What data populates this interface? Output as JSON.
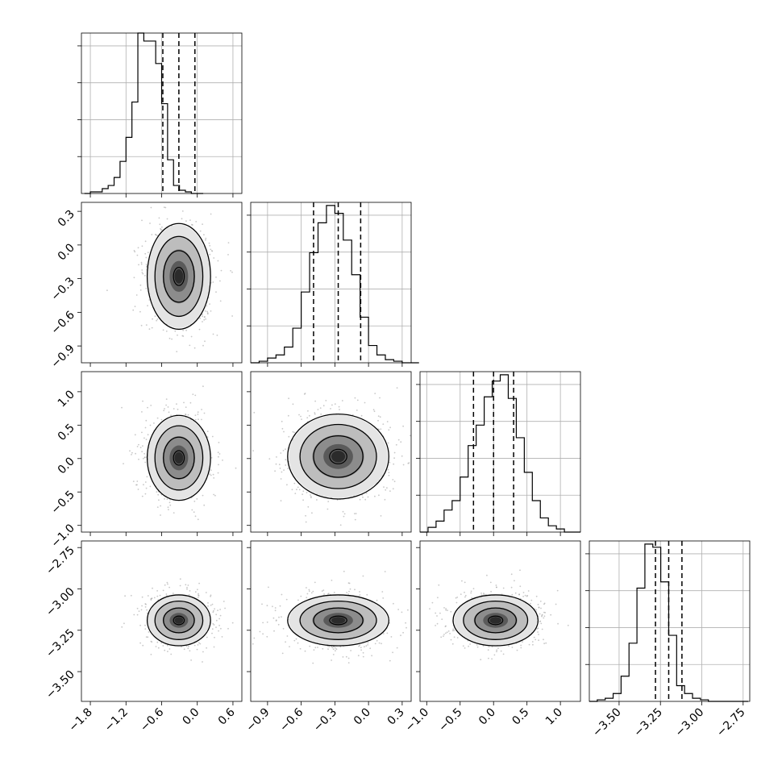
{
  "chart_data": {
    "type": "corner",
    "grid": true,
    "marginal_histograms": [
      {
        "parameter_index": 0,
        "bin_start": -1.9,
        "bin_width": 0.1,
        "counts": [
          0,
          1,
          1,
          3,
          5,
          10,
          20,
          35,
          57,
          100,
          95,
          95,
          81,
          56,
          21,
          5,
          2,
          1,
          0,
          0
        ],
        "ylim": [
          0,
          100
        ],
        "quantiles": [
          -0.58,
          -0.31,
          -0.04
        ]
      },
      {
        "parameter_index": 1,
        "bin_start": -1.05,
        "bin_width": 0.075,
        "counts": [
          0,
          1,
          3,
          5,
          10,
          22,
          45,
          70,
          89,
          100,
          95,
          78,
          56,
          29,
          11,
          5,
          2,
          1,
          0,
          0
        ],
        "ylim": [
          0,
          102
        ],
        "quantiles": [
          -0.49,
          -0.27,
          -0.07
        ]
      },
      {
        "parameter_index": 2,
        "bin_start": -1.1,
        "bin_width": 0.12,
        "counts": [
          0,
          3,
          7,
          14,
          20,
          35,
          55,
          68,
          86,
          96,
          100,
          85,
          60,
          38,
          20,
          9,
          4,
          2,
          0,
          0
        ],
        "ylim": [
          0,
          102
        ],
        "quantiles": [
          -0.3,
          0.0,
          0.3
        ]
      },
      {
        "parameter_index": 3,
        "bin_start": -3.68,
        "bin_width": 0.048,
        "counts": [
          0,
          1,
          2,
          5,
          16,
          37,
          72,
          100,
          98,
          76,
          42,
          10,
          5,
          2,
          1,
          0,
          0,
          0,
          0,
          0
        ],
        "ylim": [
          0,
          102
        ],
        "quantiles": [
          -3.28,
          -3.2,
          -3.12
        ]
      }
    ],
    "joint_2d": [
      {
        "x_param": 0,
        "y_param": 1,
        "center": [
          -0.31,
          -0.28
        ],
        "sigma": [
          0.26,
          0.23
        ]
      },
      {
        "x_param": 0,
        "y_param": 2,
        "center": [
          -0.31,
          0.01
        ],
        "sigma": [
          0.26,
          0.31
        ]
      },
      {
        "x_param": 1,
        "y_param": 2,
        "center": [
          -0.27,
          0.03
        ],
        "sigma": [
          0.22,
          0.31
        ]
      },
      {
        "x_param": 0,
        "y_param": 3,
        "center": [
          -0.31,
          -3.19
        ],
        "sigma": [
          0.26,
          0.075
        ]
      },
      {
        "x_param": 1,
        "y_param": 3,
        "center": [
          -0.27,
          -3.19
        ],
        "sigma": [
          0.22,
          0.075
        ]
      },
      {
        "x_param": 2,
        "y_param": 3,
        "center": [
          0.03,
          -3.19
        ],
        "sigma": [
          0.31,
          0.075
        ]
      }
    ],
    "axes": [
      {
        "param": 0,
        "range": [
          -1.95,
          0.75
        ],
        "ticks": [
          -1.8,
          -1.2,
          -0.6,
          0.0,
          0.6
        ],
        "tick_labels": [
          "−1.8",
          "−1.2",
          "−0.6",
          "0.0",
          "0.6"
        ]
      },
      {
        "param": 1,
        "range": [
          -1.05,
          0.38
        ],
        "ticks": [
          -0.9,
          -0.6,
          -0.3,
          0.0,
          0.3
        ],
        "tick_labels": [
          "−0.9",
          "−0.6",
          "−0.3",
          "0.0",
          "0.3"
        ]
      },
      {
        "param": 2,
        "range": [
          -1.1,
          1.3
        ],
        "ticks": [
          -1.0,
          -0.5,
          0.0,
          0.5,
          1.0
        ],
        "tick_labels": [
          "−1.0",
          "−0.5",
          "0.0",
          "0.5",
          "1.0"
        ]
      },
      {
        "param": 3,
        "range": [
          -3.68,
          -2.71
        ],
        "ticks": [
          -3.5,
          -3.25,
          -3.0,
          -2.75
        ],
        "tick_labels": [
          "−3.50",
          "−3.25",
          "−3.00",
          "−2.75"
        ]
      }
    ]
  }
}
